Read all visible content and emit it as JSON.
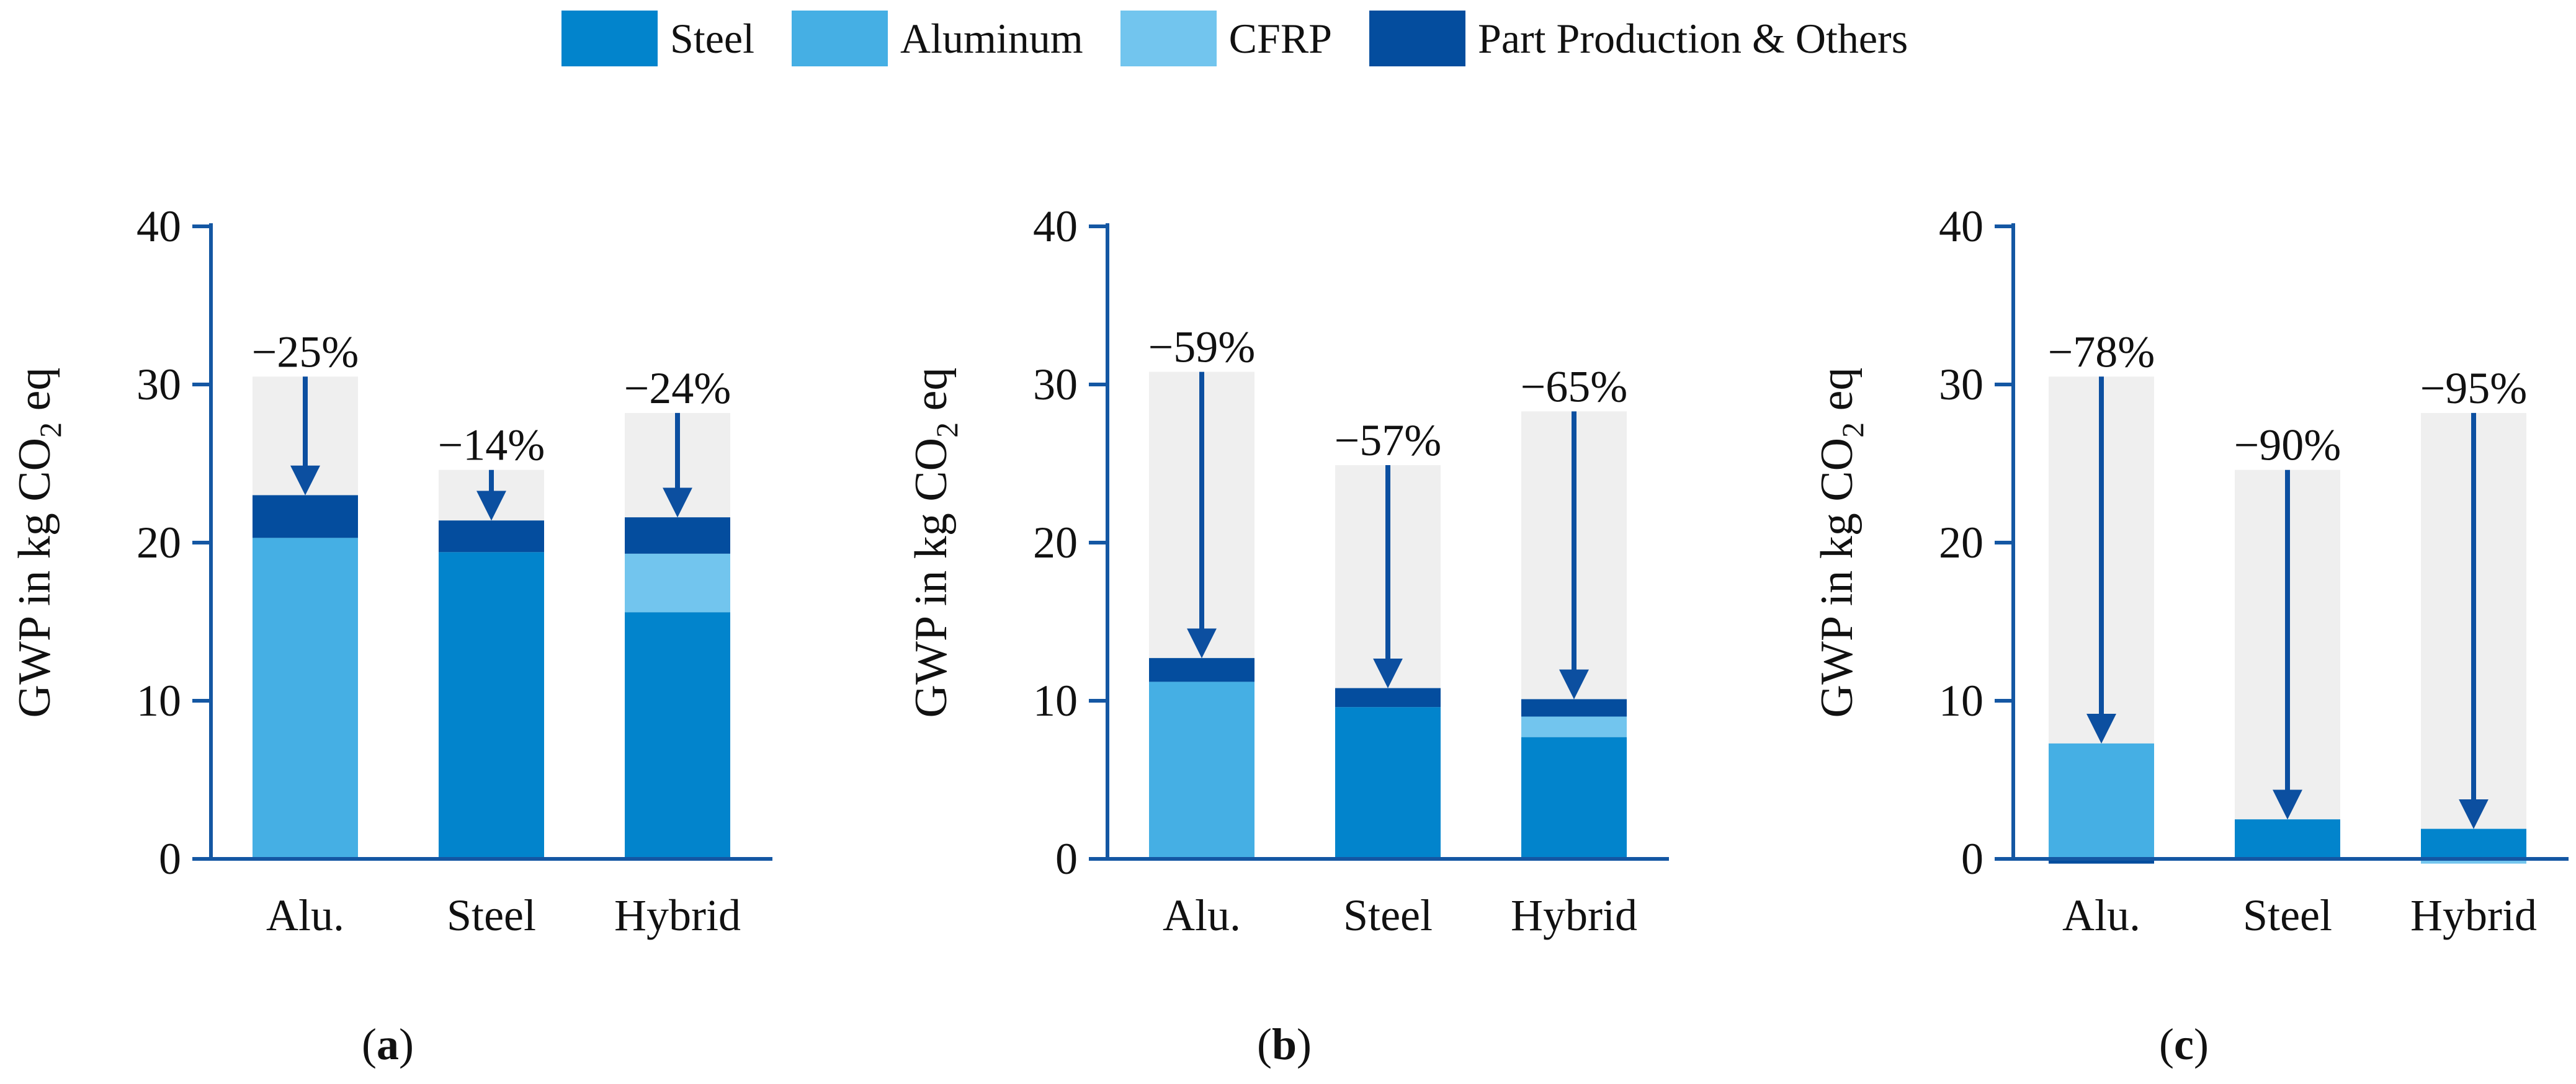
{
  "legend": [
    {
      "label": "Steel",
      "color": "#0284cc"
    },
    {
      "label": "Aluminum",
      "color": "#45afe4"
    },
    {
      "label": "CFRP",
      "color": "#72c5ee"
    },
    {
      "label": "Part Production & Others",
      "color": "#044d9e"
    }
  ],
  "colors": {
    "axis": "#1457a3",
    "arrow": "#0c4fa0",
    "reference": "#efefef"
  },
  "chart_data": [
    {
      "type": "bar",
      "stacked": true,
      "panel_label": "a",
      "ylabel": "GWP in kg CO2 eq",
      "ylabel_parts": {
        "prefix": "GWP in kg CO",
        "subscript": "2",
        "suffix": " eq"
      },
      "ylim": [
        0,
        40
      ],
      "yticks": [
        0,
        10,
        20,
        30,
        40
      ],
      "categories": [
        "Alu.",
        "Steel",
        "Hybrid"
      ],
      "reference_totals": [
        30.5,
        24.6,
        28.2
      ],
      "reductions": [
        "−25%",
        "−14%",
        "−24%"
      ],
      "series": [
        {
          "name": "Steel",
          "values": [
            0,
            19.4,
            15.6
          ]
        },
        {
          "name": "Aluminum",
          "values": [
            20.3,
            0,
            0
          ]
        },
        {
          "name": "CFRP",
          "values": [
            0,
            0,
            3.7
          ]
        },
        {
          "name": "Part Production & Others",
          "values": [
            2.7,
            2.0,
            2.3
          ]
        }
      ]
    },
    {
      "type": "bar",
      "stacked": true,
      "panel_label": "b",
      "ylabel": "GWP in kg CO2 eq",
      "ylabel_parts": {
        "prefix": "GWP in kg CO",
        "subscript": "2",
        "suffix": " eq"
      },
      "ylim": [
        0,
        40
      ],
      "yticks": [
        0,
        10,
        20,
        30,
        40
      ],
      "categories": [
        "Alu.",
        "Steel",
        "Hybrid"
      ],
      "reference_totals": [
        30.8,
        24.9,
        28.3
      ],
      "reductions": [
        "−59%",
        "−57%",
        "−65%"
      ],
      "series": [
        {
          "name": "Steel",
          "values": [
            0,
            9.6,
            7.7
          ]
        },
        {
          "name": "Aluminum",
          "values": [
            11.2,
            0,
            0
          ]
        },
        {
          "name": "CFRP",
          "values": [
            0,
            0,
            1.3
          ]
        },
        {
          "name": "Part Production & Others",
          "values": [
            1.5,
            1.2,
            1.1
          ]
        }
      ]
    },
    {
      "type": "bar",
      "stacked": true,
      "panel_label": "c",
      "ylabel": "GWP in kg CO2 eq",
      "ylabel_parts": {
        "prefix": "GWP in kg CO",
        "subscript": "2",
        "suffix": " eq"
      },
      "ylim": [
        0,
        40
      ],
      "yticks": [
        0,
        10,
        20,
        30,
        40
      ],
      "categories": [
        "Alu.",
        "Steel",
        "Hybrid"
      ],
      "reference_totals": [
        30.5,
        24.6,
        28.2
      ],
      "reductions": [
        "−78%",
        "−90%",
        "−95%"
      ],
      "series": [
        {
          "name": "Steel",
          "values": [
            0,
            2.5,
            1.9
          ]
        },
        {
          "name": "Aluminum",
          "values": [
            7.3,
            0,
            0
          ]
        },
        {
          "name": "CFRP",
          "values": [
            0,
            0,
            -0.3
          ]
        },
        {
          "name": "Part Production & Others",
          "values": [
            -0.3,
            0,
            0
          ]
        }
      ]
    }
  ]
}
